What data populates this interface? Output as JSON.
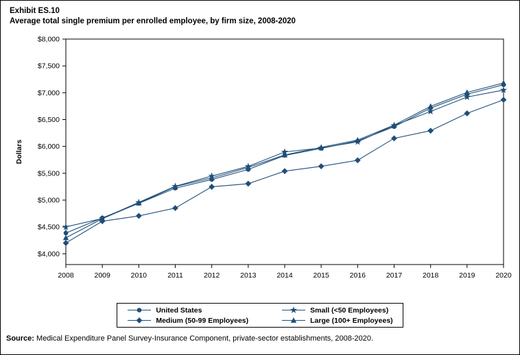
{
  "title_line1": "Exhibit ES.10",
  "title_line2": "Average total single premium per enrolled employee, by firm size, 2008-2020",
  "chart_data": {
    "type": "line",
    "x": [
      2008,
      2009,
      2010,
      2011,
      2012,
      2013,
      2014,
      2015,
      2016,
      2017,
      2018,
      2019,
      2020
    ],
    "ylabel": "Dollars",
    "ylim": [
      3800,
      8000
    ],
    "yticks": [
      4000,
      4500,
      5000,
      5500,
      6000,
      6500,
      7000,
      7500,
      8000
    ],
    "grid": false,
    "legend_position": "bottom",
    "color": "#1F4E79",
    "series": [
      {
        "name": "United States",
        "marker": "circle",
        "values": [
          4386,
          4669,
          4940,
          5222,
          5384,
          5571,
          5832,
          5963,
          6101,
          6368,
          6715,
          6972,
          7149
        ]
      },
      {
        "name": "Small (<50 Employees)",
        "marker": "star",
        "values": [
          4501,
          4658,
          4958,
          5258,
          5448,
          5628,
          5897,
          5972,
          6085,
          6391,
          6652,
          6920,
          7050
        ]
      },
      {
        "name": "Medium (50-99 Employees)",
        "marker": "diamond",
        "values": [
          4201,
          4607,
          4706,
          4852,
          5248,
          5306,
          5540,
          5630,
          5742,
          6151,
          6293,
          6616,
          6869
        ]
      },
      {
        "name": "Large (100+ Employees)",
        "marker": "triangle",
        "values": [
          4298,
          4653,
          4944,
          5251,
          5413,
          5608,
          5842,
          5983,
          6119,
          6397,
          6747,
          7006,
          7182
        ]
      }
    ]
  },
  "source": {
    "label": "Source:",
    "text": "Medical Expenditure Panel Survey-Insurance Component, private-sector establishments, 2008-2020."
  }
}
